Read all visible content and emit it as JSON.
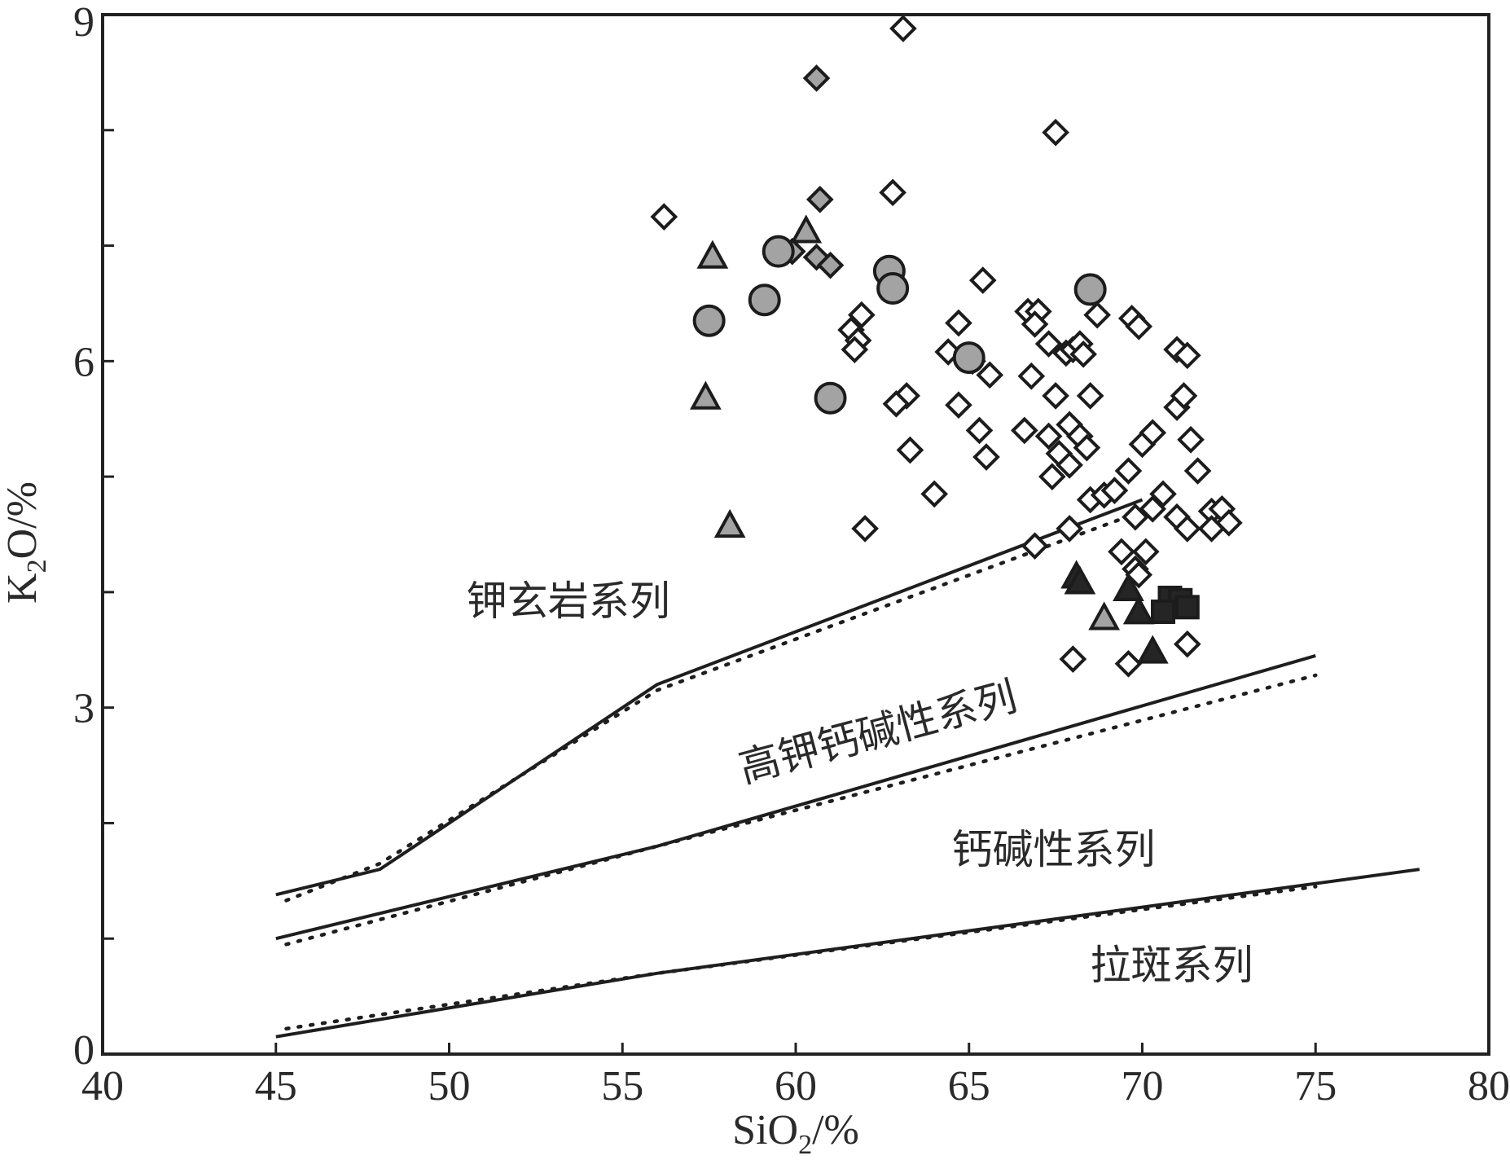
{
  "chart_data": {
    "type": "scatter",
    "xlabel": {
      "main": "SiO",
      "sub": "2",
      "unit": "/%"
    },
    "ylabel": {
      "main": "K",
      "sub": "2",
      "unit": "O/%"
    },
    "xlim": [
      40,
      80
    ],
    "ylim": [
      0,
      9
    ],
    "x_ticks": [
      40,
      45,
      50,
      55,
      60,
      65,
      70,
      75,
      80
    ],
    "y_ticks": [
      0,
      3,
      6,
      9
    ],
    "y_minor_step": 1,
    "grid": false,
    "regions": [
      {
        "label": "钾玄岩系列",
        "x": 50.5,
        "y": 3.8
      },
      {
        "label": "高钾钙碱性系列",
        "x": 58.5,
        "y": 2.35,
        "rotate": -15
      },
      {
        "label": "钙碱性系列",
        "x": 64.5,
        "y": 1.65
      },
      {
        "label": "拉斑系列",
        "x": 68.5,
        "y": 0.65
      }
    ],
    "boundary_lines": [
      {
        "style": "solid",
        "points": [
          [
            45,
            1.38
          ],
          [
            48,
            1.6
          ],
          [
            56,
            3.2
          ],
          [
            70,
            4.8
          ]
        ]
      },
      {
        "style": "dotted",
        "points": [
          [
            45.3,
            1.33
          ],
          [
            48,
            1.65
          ],
          [
            56,
            3.15
          ],
          [
            70,
            4.7
          ]
        ]
      },
      {
        "style": "solid",
        "points": [
          [
            45,
            1.0
          ],
          [
            56,
            1.8
          ],
          [
            75,
            3.45
          ]
        ]
      },
      {
        "style": "dotted",
        "points": [
          [
            45.3,
            0.95
          ],
          [
            56,
            1.8
          ],
          [
            75,
            3.28
          ]
        ]
      },
      {
        "style": "solid",
        "points": [
          [
            45,
            0.15
          ],
          [
            56,
            0.7
          ],
          [
            78,
            1.6
          ]
        ]
      },
      {
        "style": "dotted",
        "points": [
          [
            45.3,
            0.22
          ],
          [
            56,
            0.7
          ],
          [
            75,
            1.45
          ]
        ]
      }
    ],
    "series": [
      {
        "marker": "diamond",
        "fill": "#ffffff",
        "points": [
          [
            63.1,
            8.88
          ],
          [
            67.5,
            7.98
          ],
          [
            62.8,
            7.46
          ],
          [
            56.2,
            7.25
          ],
          [
            61.9,
            6.4
          ],
          [
            61.6,
            6.27
          ],
          [
            61.8,
            6.18
          ],
          [
            61.7,
            6.1
          ],
          [
            65.4,
            6.7
          ],
          [
            64.7,
            6.33
          ],
          [
            66.7,
            6.43
          ],
          [
            67.0,
            6.43
          ],
          [
            66.9,
            6.32
          ],
          [
            67.3,
            6.15
          ],
          [
            67.8,
            6.07
          ],
          [
            68.0,
            6.1
          ],
          [
            68.2,
            6.15
          ],
          [
            68.3,
            6.06
          ],
          [
            68.7,
            6.4
          ],
          [
            69.7,
            6.37
          ],
          [
            69.9,
            6.3
          ],
          [
            71.0,
            6.1
          ],
          [
            71.3,
            6.05
          ],
          [
            64.4,
            6.08
          ],
          [
            65.6,
            5.88
          ],
          [
            66.8,
            5.87
          ],
          [
            65.1,
            6.0
          ],
          [
            63.2,
            5.7
          ],
          [
            62.9,
            5.63
          ],
          [
            64.7,
            5.62
          ],
          [
            67.5,
            5.7
          ],
          [
            68.5,
            5.7
          ],
          [
            65.3,
            5.4
          ],
          [
            66.6,
            5.4
          ],
          [
            67.9,
            5.45
          ],
          [
            68.2,
            5.35
          ],
          [
            67.3,
            5.35
          ],
          [
            63.3,
            5.23
          ],
          [
            65.5,
            5.17
          ],
          [
            67.6,
            5.2
          ],
          [
            67.9,
            5.1
          ],
          [
            68.4,
            5.25
          ],
          [
            67.4,
            5.0
          ],
          [
            69.6,
            5.05
          ],
          [
            70.0,
            5.28
          ],
          [
            70.3,
            5.38
          ],
          [
            71.0,
            5.6
          ],
          [
            71.2,
            5.7
          ],
          [
            71.4,
            5.32
          ],
          [
            71.6,
            5.05
          ],
          [
            64.0,
            4.85
          ],
          [
            68.5,
            4.8
          ],
          [
            68.9,
            4.84
          ],
          [
            69.2,
            4.88
          ],
          [
            69.8,
            4.65
          ],
          [
            70.3,
            4.72
          ],
          [
            70.6,
            4.85
          ],
          [
            71.0,
            4.65
          ],
          [
            71.3,
            4.55
          ],
          [
            72.0,
            4.7
          ],
          [
            72.3,
            4.72
          ],
          [
            72.5,
            4.6
          ],
          [
            72.0,
            4.55
          ],
          [
            62.0,
            4.55
          ],
          [
            67.9,
            4.55
          ],
          [
            66.9,
            4.4
          ],
          [
            69.4,
            4.35
          ],
          [
            69.8,
            4.2
          ],
          [
            69.9,
            4.15
          ],
          [
            70.1,
            4.35
          ],
          [
            71.3,
            3.55
          ],
          [
            68.0,
            3.42
          ],
          [
            69.6,
            3.38
          ]
        ]
      },
      {
        "marker": "diamond",
        "fill": "#a3a3a3",
        "points": [
          [
            60.6,
            8.45
          ],
          [
            60.7,
            7.4
          ],
          [
            59.9,
            6.95
          ],
          [
            60.6,
            6.9
          ],
          [
            61.0,
            6.83
          ]
        ]
      },
      {
        "marker": "circle",
        "fill": "#a3a3a3",
        "points": [
          [
            59.5,
            6.95
          ],
          [
            62.7,
            6.78
          ],
          [
            62.8,
            6.63
          ],
          [
            59.1,
            6.53
          ],
          [
            57.5,
            6.35
          ],
          [
            68.5,
            6.62
          ],
          [
            65.0,
            6.03
          ],
          [
            61.0,
            5.68
          ]
        ]
      },
      {
        "marker": "triangle",
        "fill": "#a3a3a3",
        "points": [
          [
            60.3,
            7.12
          ],
          [
            57.6,
            6.9
          ],
          [
            57.4,
            5.68
          ],
          [
            58.1,
            4.57
          ],
          [
            68.9,
            3.77
          ]
        ]
      },
      {
        "marker": "triangle",
        "fill": "#252525",
        "points": [
          [
            68.1,
            4.13
          ],
          [
            68.2,
            4.08
          ],
          [
            69.6,
            4.02
          ],
          [
            69.9,
            3.82
          ],
          [
            70.3,
            3.48
          ]
        ]
      },
      {
        "marker": "square",
        "fill": "#252525",
        "points": [
          [
            70.8,
            3.95
          ],
          [
            71.1,
            3.93
          ],
          [
            71.3,
            3.87
          ],
          [
            70.6,
            3.83
          ]
        ]
      }
    ]
  }
}
